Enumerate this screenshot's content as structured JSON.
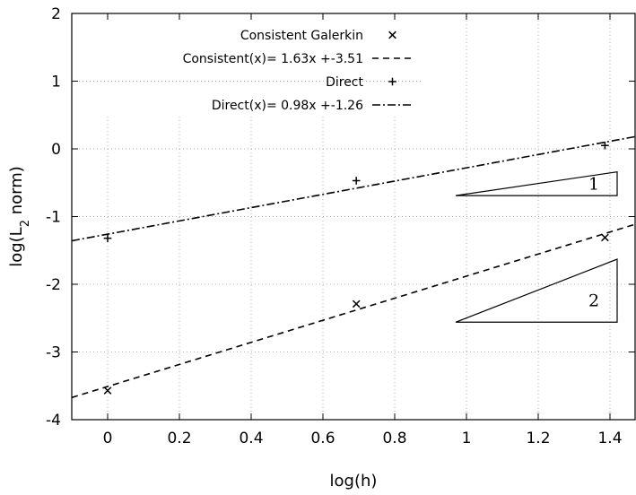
{
  "chart_data": {
    "type": "scatter",
    "xlabel": "log(h)",
    "ylabel": {
      "prefix": "log(L",
      "sub": "2",
      "suffix": " norm)"
    },
    "xlim": [
      -0.1,
      1.47
    ],
    "ylim": [
      -4,
      2
    ],
    "xticks": [
      "0",
      "0.2",
      "0.4",
      "0.6",
      "0.8",
      "1",
      "1.2",
      "1.4"
    ],
    "yticks": [
      "-4",
      "-3",
      "-2",
      "-1",
      "0",
      "1",
      "2"
    ],
    "grid": true,
    "legend_position": "top-right",
    "series": [
      {
        "name": "Consistent Galerkin",
        "kind": "points",
        "marker": "x",
        "x": [
          0,
          0.693,
          1.386
        ],
        "y": [
          -3.57,
          -2.29,
          -1.31
        ]
      },
      {
        "name": "Consistent(x)= 1.63x +-3.51",
        "kind": "line",
        "dash": "dashed",
        "slope": 1.63,
        "intercept": -3.51
      },
      {
        "name": "Direct",
        "kind": "points",
        "marker": "plus",
        "x": [
          0,
          0.693,
          1.386
        ],
        "y": [
          -1.32,
          -0.47,
          0.05
        ]
      },
      {
        "name": "Direct(x)= 0.98x +-1.26",
        "kind": "line",
        "dash": "dashdot",
        "slope": 0.98,
        "intercept": -1.26
      }
    ],
    "annotations": [
      {
        "label": "1",
        "base": [
          0.97,
          -0.69
        ],
        "tip": [
          1.42,
          -0.34
        ]
      },
      {
        "label": "2",
        "base": [
          0.97,
          -2.56
        ],
        "tip": [
          1.42,
          -1.63
        ]
      }
    ]
  }
}
